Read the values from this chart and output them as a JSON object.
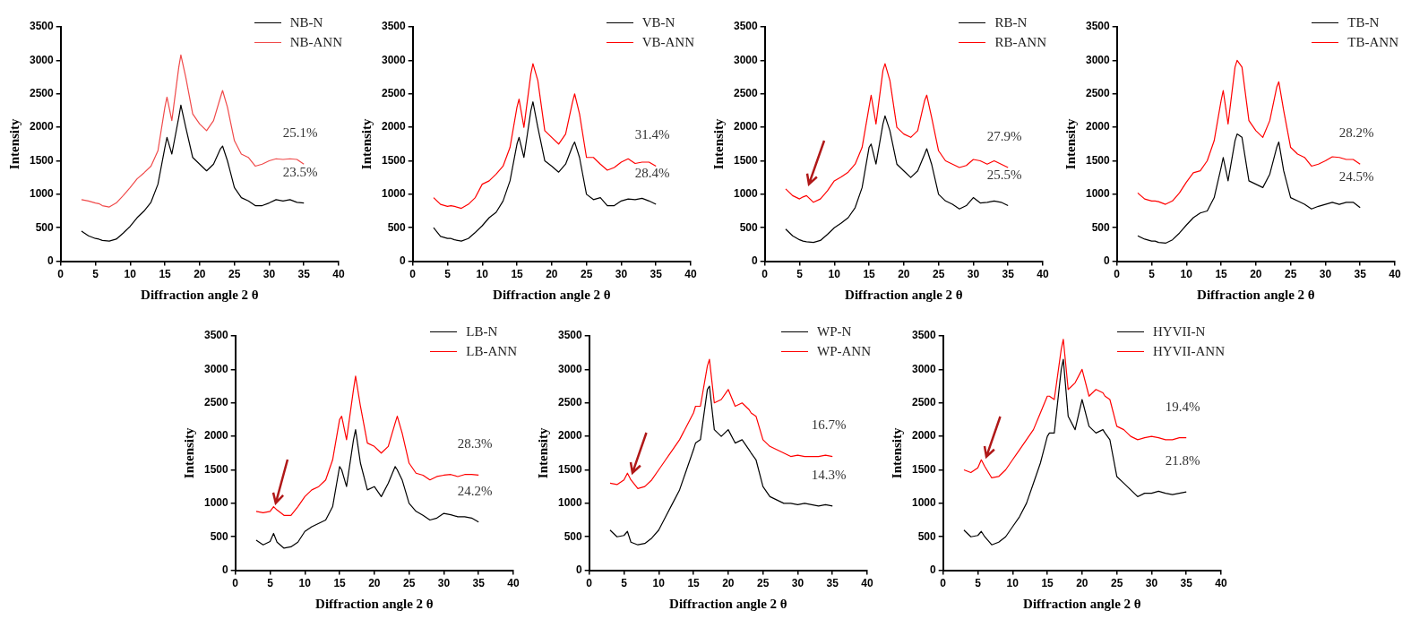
{
  "chart_data": [
    {
      "type": "line",
      "xlabel": "Diffraction angle 2 θ",
      "ylabel": "Intensity",
      "xlim": [
        0,
        40
      ],
      "ylim": [
        0,
        3500
      ],
      "xticks": [
        0,
        5,
        10,
        15,
        20,
        25,
        30,
        35,
        40
      ],
      "yticks": [
        0,
        500,
        1000,
        1500,
        2000,
        2500,
        3000,
        3500
      ],
      "grid": false,
      "legend": "top right",
      "marker": "none",
      "line_style": "solid",
      "x": [
        3,
        4,
        5,
        5.5,
        6,
        7,
        8,
        9,
        10,
        11,
        12,
        13,
        14,
        15,
        15.3,
        16,
        17,
        17.3,
        18,
        19,
        20,
        21,
        22,
        23,
        23.3,
        24,
        25,
        26,
        27,
        28,
        29,
        30,
        31,
        32,
        33,
        34,
        35
      ],
      "series": [
        {
          "name": "NB-N",
          "color": "#000000",
          "values": [
            450,
            380,
            340,
            330,
            310,
            300,
            330,
            420,
            520,
            650,
            750,
            880,
            1150,
            1700,
            1850,
            1600,
            2150,
            2330,
            2000,
            1550,
            1450,
            1350,
            1450,
            1680,
            1720,
            1500,
            1100,
            950,
            900,
            830,
            830,
            870,
            920,
            900,
            920,
            880,
            870
          ]
        },
        {
          "name": "NB-ANN",
          "color": "#f04a4a",
          "values": [
            920,
            900,
            870,
            860,
            830,
            810,
            870,
            980,
            1100,
            1230,
            1320,
            1420,
            1650,
            2300,
            2450,
            2100,
            2900,
            3080,
            2750,
            2200,
            2050,
            1950,
            2100,
            2450,
            2550,
            2300,
            1800,
            1600,
            1550,
            1420,
            1450,
            1500,
            1530,
            1520,
            1530,
            1520,
            1450
          ]
        }
      ],
      "annotations": [
        "25.1%",
        "23.5%"
      ]
    },
    {
      "type": "line",
      "xlabel": "Diffraction angle 2 θ",
      "ylabel": "Intensity",
      "xlim": [
        0,
        40
      ],
      "ylim": [
        0,
        3500
      ],
      "xticks": [
        0,
        5,
        10,
        15,
        20,
        25,
        30,
        35,
        40
      ],
      "yticks": [
        0,
        500,
        1000,
        1500,
        2000,
        2500,
        3000,
        3500
      ],
      "grid": false,
      "legend": "top right",
      "marker": "none",
      "line_style": "solid",
      "x": [
        3,
        4,
        5,
        5.5,
        6,
        7,
        8,
        9,
        10,
        11,
        12,
        13,
        14,
        15,
        15.3,
        16,
        17,
        17.3,
        18,
        19,
        20,
        21,
        22,
        23,
        23.3,
        24,
        25,
        26,
        27,
        28,
        29,
        30,
        31,
        32,
        33,
        34,
        35
      ],
      "series": [
        {
          "name": "VB-N",
          "color": "#000000",
          "values": [
            500,
            370,
            340,
            340,
            320,
            300,
            340,
            430,
            530,
            650,
            730,
            900,
            1200,
            1750,
            1850,
            1550,
            2250,
            2380,
            2000,
            1500,
            1420,
            1330,
            1450,
            1720,
            1780,
            1550,
            1000,
            920,
            950,
            830,
            830,
            900,
            930,
            920,
            940,
            900,
            850
          ]
        },
        {
          "name": "VB-ANN",
          "color": "#ff0000",
          "values": [
            950,
            850,
            820,
            830,
            820,
            790,
            850,
            950,
            1150,
            1200,
            1300,
            1420,
            1700,
            2300,
            2420,
            2000,
            2800,
            2950,
            2700,
            1950,
            1850,
            1750,
            1900,
            2380,
            2500,
            2200,
            1550,
            1550,
            1450,
            1360,
            1400,
            1480,
            1530,
            1460,
            1480,
            1480,
            1420
          ]
        }
      ],
      "annotations": [
        "31.4%",
        "28.4%"
      ]
    },
    {
      "type": "line",
      "xlabel": "Diffraction angle 2 θ",
      "ylabel": "Intensity",
      "xlim": [
        0,
        40
      ],
      "ylim": [
        0,
        3500
      ],
      "xticks": [
        0,
        5,
        10,
        15,
        20,
        25,
        30,
        35,
        40
      ],
      "yticks": [
        0,
        500,
        1000,
        1500,
        2000,
        2500,
        3000,
        3500
      ],
      "grid": false,
      "legend": "top right",
      "marker": "none",
      "line_style": "solid",
      "x": [
        3,
        4,
        5,
        5.5,
        6,
        7,
        8,
        9,
        10,
        11,
        12,
        13,
        14,
        15,
        15.3,
        16,
        17,
        17.3,
        18,
        19,
        20,
        21,
        22,
        23,
        23.3,
        24,
        25,
        26,
        27,
        28,
        29,
        30,
        31,
        32,
        33,
        34,
        35
      ],
      "series": [
        {
          "name": "RB-N",
          "color": "#000000",
          "values": [
            480,
            380,
            320,
            300,
            290,
            280,
            310,
            400,
            500,
            570,
            650,
            800,
            1100,
            1700,
            1750,
            1450,
            2050,
            2170,
            1950,
            1450,
            1350,
            1250,
            1350,
            1600,
            1680,
            1450,
            1000,
            900,
            850,
            780,
            830,
            950,
            870,
            880,
            900,
            880,
            830
          ]
        },
        {
          "name": "RB-ANN",
          "color": "#ff0000",
          "values": [
            1080,
            980,
            930,
            960,
            980,
            880,
            930,
            1050,
            1200,
            1260,
            1330,
            1450,
            1700,
            2300,
            2480,
            2050,
            2850,
            2950,
            2700,
            2000,
            1900,
            1850,
            1950,
            2400,
            2480,
            2150,
            1650,
            1500,
            1450,
            1400,
            1430,
            1520,
            1500,
            1450,
            1500,
            1450,
            1400
          ]
        }
      ],
      "annotations": [
        "27.9%",
        "25.5%"
      ]
    },
    {
      "type": "line",
      "xlabel": "Diffraction angle 2 θ",
      "ylabel": "Intensity",
      "xlim": [
        0,
        40
      ],
      "ylim": [
        0,
        3500
      ],
      "xticks": [
        0,
        5,
        10,
        15,
        20,
        25,
        30,
        35,
        40
      ],
      "yticks": [
        0,
        500,
        1000,
        1500,
        2000,
        2500,
        3000,
        3500
      ],
      "grid": false,
      "legend": "top right",
      "marker": "none",
      "line_style": "solid",
      "x": [
        3,
        4,
        5,
        5.5,
        6,
        7,
        8,
        9,
        10,
        11,
        12,
        13,
        14,
        15,
        15.3,
        16,
        17,
        17.3,
        18,
        19,
        20,
        21,
        22,
        23,
        23.3,
        24,
        25,
        26,
        27,
        28,
        29,
        30,
        31,
        32,
        33,
        34,
        35
      ],
      "series": [
        {
          "name": "TB-N",
          "color": "#000000",
          "values": [
            380,
            330,
            300,
            300,
            280,
            270,
            320,
            420,
            540,
            650,
            720,
            750,
            950,
            1400,
            1550,
            1200,
            1800,
            1900,
            1850,
            1200,
            1150,
            1100,
            1300,
            1700,
            1780,
            1350,
            950,
            900,
            850,
            780,
            820,
            850,
            880,
            850,
            880,
            880,
            800
          ]
        },
        {
          "name": "TB-ANN",
          "color": "#ff0000",
          "values": [
            1020,
            930,
            900,
            900,
            890,
            850,
            900,
            1020,
            1180,
            1320,
            1350,
            1500,
            1800,
            2400,
            2550,
            2050,
            2900,
            3000,
            2900,
            2100,
            1950,
            1850,
            2100,
            2600,
            2680,
            2250,
            1700,
            1600,
            1550,
            1420,
            1450,
            1500,
            1560,
            1550,
            1520,
            1520,
            1450
          ]
        }
      ],
      "annotations": [
        "28.2%",
        "24.5%"
      ]
    },
    {
      "type": "line",
      "xlabel": "Diffraction angle 2 θ",
      "ylabel": "Intensity",
      "xlim": [
        0,
        40
      ],
      "ylim": [
        0,
        3500
      ],
      "xticks": [
        0,
        5,
        10,
        15,
        20,
        25,
        30,
        35,
        40
      ],
      "yticks": [
        0,
        500,
        1000,
        1500,
        2000,
        2500,
        3000,
        3500
      ],
      "grid": false,
      "legend": "top right",
      "marker": "none",
      "line_style": "solid",
      "x": [
        3,
        4,
        5,
        5.5,
        6,
        7,
        8,
        9,
        10,
        11,
        12,
        13,
        14,
        15,
        15.3,
        16,
        17,
        17.3,
        18,
        19,
        20,
        21,
        22,
        23,
        23.3,
        24,
        25,
        26,
        27,
        28,
        29,
        30,
        31,
        32,
        33,
        34,
        35
      ],
      "series": [
        {
          "name": "LB-N",
          "color": "#000000",
          "values": [
            450,
            380,
            430,
            550,
            420,
            330,
            350,
            420,
            580,
            650,
            700,
            750,
            950,
            1550,
            1500,
            1250,
            1950,
            2100,
            1600,
            1200,
            1250,
            1100,
            1300,
            1550,
            1500,
            1350,
            1000,
            880,
            820,
            750,
            780,
            850,
            830,
            800,
            800,
            780,
            720
          ]
        },
        {
          "name": "LB-ANN",
          "color": "#ff0000",
          "values": [
            880,
            860,
            880,
            950,
            900,
            820,
            820,
            950,
            1100,
            1200,
            1250,
            1350,
            1650,
            2250,
            2300,
            1950,
            2700,
            2900,
            2450,
            1900,
            1850,
            1750,
            1850,
            2200,
            2300,
            2050,
            1600,
            1450,
            1420,
            1350,
            1400,
            1420,
            1430,
            1400,
            1430,
            1430,
            1420
          ]
        }
      ],
      "annotations": [
        "28.3%",
        "24.2%"
      ]
    },
    {
      "type": "line",
      "xlabel": "Diffraction angle 2 θ",
      "ylabel": "Intensity",
      "xlim": [
        0,
        40
      ],
      "ylim": [
        0,
        3500
      ],
      "xticks": [
        0,
        5,
        10,
        15,
        20,
        25,
        30,
        35,
        40
      ],
      "yticks": [
        0,
        500,
        1000,
        1500,
        2000,
        2500,
        3000,
        3500
      ],
      "grid": false,
      "legend": "top right",
      "marker": "none",
      "line_style": "solid",
      "x": [
        3,
        4,
        5,
        5.5,
        6,
        7,
        8,
        9,
        10,
        11,
        12,
        13,
        14,
        15,
        15.3,
        16,
        17,
        17.3,
        18,
        19,
        20,
        21,
        22,
        23,
        23.3,
        24,
        25,
        26,
        27,
        28,
        29,
        30,
        31,
        32,
        33,
        34,
        35
      ],
      "series": [
        {
          "name": "WP-N",
          "color": "#000000",
          "values": [
            600,
            500,
            520,
            580,
            420,
            380,
            400,
            480,
            600,
            800,
            1000,
            1200,
            1500,
            1800,
            1900,
            1950,
            2700,
            2750,
            2100,
            2000,
            2100,
            1900,
            1950,
            1800,
            1750,
            1650,
            1250,
            1100,
            1050,
            1000,
            1000,
            980,
            1000,
            980,
            960,
            980,
            960
          ]
        },
        {
          "name": "WP-ANN",
          "color": "#ff0000",
          "values": [
            1300,
            1280,
            1350,
            1450,
            1350,
            1220,
            1250,
            1350,
            1500,
            1650,
            1800,
            1950,
            2150,
            2350,
            2450,
            2450,
            3050,
            3150,
            2500,
            2550,
            2700,
            2450,
            2500,
            2400,
            2350,
            2300,
            1950,
            1850,
            1800,
            1750,
            1700,
            1720,
            1700,
            1700,
            1700,
            1720,
            1700
          ]
        }
      ],
      "annotations": [
        "16.7%",
        "14.3%"
      ]
    },
    {
      "type": "line",
      "xlabel": "Diffraction angle 2 θ",
      "ylabel": "Intensity",
      "xlim": [
        0,
        40
      ],
      "ylim": [
        0,
        3500
      ],
      "xticks": [
        0,
        5,
        10,
        15,
        20,
        25,
        30,
        35,
        40
      ],
      "yticks": [
        0,
        500,
        1000,
        1500,
        2000,
        2500,
        3000,
        3500
      ],
      "grid": false,
      "legend": "top right",
      "marker": "none",
      "line_style": "solid",
      "x": [
        3,
        4,
        5,
        5.5,
        6,
        7,
        8,
        9,
        10,
        11,
        12,
        13,
        14,
        15,
        15.3,
        16,
        17,
        17.3,
        18,
        19,
        20,
        21,
        22,
        23,
        23.3,
        24,
        25,
        26,
        27,
        28,
        29,
        30,
        31,
        32,
        33,
        34,
        35
      ],
      "series": [
        {
          "name": "HYVII-N",
          "color": "#000000",
          "values": [
            600,
            500,
            520,
            580,
            500,
            380,
            420,
            500,
            650,
            800,
            1000,
            1300,
            1600,
            2000,
            2050,
            2050,
            3000,
            3150,
            2300,
            2100,
            2550,
            2150,
            2050,
            2100,
            2050,
            1950,
            1400,
            1300,
            1200,
            1100,
            1150,
            1150,
            1180,
            1150,
            1130,
            1150,
            1170
          ]
        },
        {
          "name": "HYVII-ANN",
          "color": "#ff0000",
          "values": [
            1500,
            1460,
            1530,
            1650,
            1550,
            1380,
            1400,
            1500,
            1650,
            1800,
            1950,
            2100,
            2350,
            2600,
            2600,
            2550,
            3300,
            3450,
            2700,
            2800,
            3000,
            2600,
            2700,
            2650,
            2600,
            2550,
            2150,
            2100,
            2000,
            1950,
            1980,
            2000,
            1980,
            1950,
            1950,
            1980,
            1980
          ]
        }
      ],
      "annotations": [
        "19.4%",
        "21.8%"
      ]
    }
  ]
}
